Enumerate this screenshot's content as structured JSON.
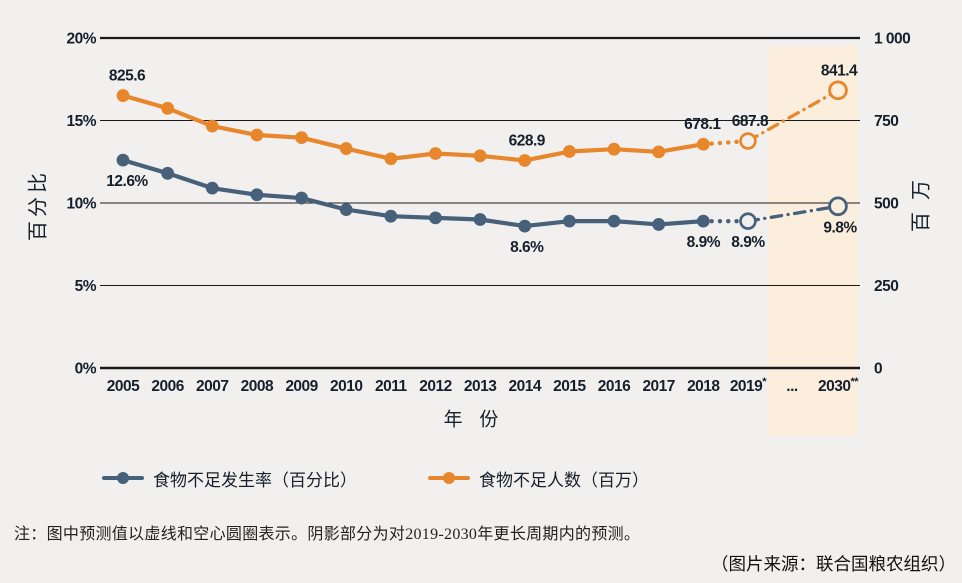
{
  "colors": {
    "background": "#f1f0ee",
    "grid": "#1a1a1a",
    "text": "#16202c",
    "shade": "#fceedd",
    "percent_series": "#48617a",
    "millions_series": "#e8862c"
  },
  "chart_data": {
    "type": "line",
    "x_axis": {
      "label": "年 份",
      "categories": [
        "2005",
        "2006",
        "2007",
        "2008",
        "2009",
        "2010",
        "2011",
        "2012",
        "2013",
        "2014",
        "2015",
        "2016",
        "2017",
        "2018",
        "2019*",
        "...",
        "2030**"
      ]
    },
    "y_axis_left": {
      "label": "百分比",
      "ticks": [
        "20%",
        "15%",
        "10%",
        "5%",
        "0%"
      ],
      "range": [
        0,
        20
      ]
    },
    "y_axis_right": {
      "label": "百万",
      "ticks": [
        "1 000",
        "750",
        "500",
        "250",
        "0"
      ],
      "range": [
        0,
        1000
      ]
    },
    "series": [
      {
        "name": "食物不足发生率（百分比）",
        "axis": "left",
        "color": "#48617a",
        "years": [
          "2005",
          "2006",
          "2007",
          "2008",
          "2009",
          "2010",
          "2011",
          "2012",
          "2013",
          "2014",
          "2015",
          "2016",
          "2017",
          "2018",
          "2019",
          "2030"
        ],
        "values": [
          12.6,
          11.8,
          10.9,
          10.5,
          10.3,
          9.6,
          9.2,
          9.1,
          9.0,
          8.6,
          8.9,
          8.9,
          8.7,
          8.9,
          8.9,
          9.8
        ],
        "forecast_from_year": "2019"
      },
      {
        "name": "食物不足人数（百万）",
        "axis": "right",
        "color": "#e8862c",
        "years": [
          "2005",
          "2006",
          "2007",
          "2008",
          "2009",
          "2010",
          "2011",
          "2012",
          "2013",
          "2014",
          "2015",
          "2016",
          "2017",
          "2018",
          "2019",
          "2030"
        ],
        "values": [
          825.6,
          787,
          733,
          706,
          698,
          665,
          634,
          650,
          643,
          628.9,
          656,
          663,
          655,
          678.1,
          687.8,
          841.4
        ],
        "forecast_from_year": "2019"
      }
    ],
    "data_labels": [
      {
        "text": "825.6",
        "series": 1,
        "index": 0,
        "placement": "above",
        "dx": 4
      },
      {
        "text": "12.6%",
        "series": 0,
        "index": 0,
        "placement": "below",
        "dx": 4
      },
      {
        "text": "628.9",
        "series": 1,
        "index": 9,
        "placement": "above",
        "dx": 2
      },
      {
        "text": "8.6%",
        "series": 0,
        "index": 9,
        "placement": "below",
        "dx": 2
      },
      {
        "text": "678.1",
        "series": 1,
        "index": 13,
        "placement": "above",
        "dx": -1
      },
      {
        "text": "687.8",
        "series": 1,
        "index": 14,
        "placement": "above",
        "dx": 2
      },
      {
        "text": "8.9%",
        "series": 0,
        "index": 13,
        "placement": "below",
        "dx": 0
      },
      {
        "text": "8.9%",
        "series": 0,
        "index": 14,
        "placement": "below",
        "dx": 0
      },
      {
        "text": "841.4",
        "series": 1,
        "index": 15,
        "placement": "above",
        "dx": 1
      },
      {
        "text": "9.8%",
        "series": 0,
        "index": 15,
        "placement": "below",
        "dx": 2
      }
    ],
    "shaded_region": {
      "covers_years": "2019-2030",
      "color": "#fceedd"
    },
    "grid": "horizontal",
    "legend_position": "bottom"
  },
  "legend": {
    "items": [
      {
        "label": "食物不足发生率（百分比）",
        "color": "#48617a"
      },
      {
        "label": "食物不足人数（百万）",
        "color": "#e8862c"
      }
    ]
  },
  "note": "注：图中预测值以虚线和空心圆圈表示。阴影部分为对2019-2030年更长周期内的预测。",
  "source": "（图片来源：联合国粮农组织）"
}
